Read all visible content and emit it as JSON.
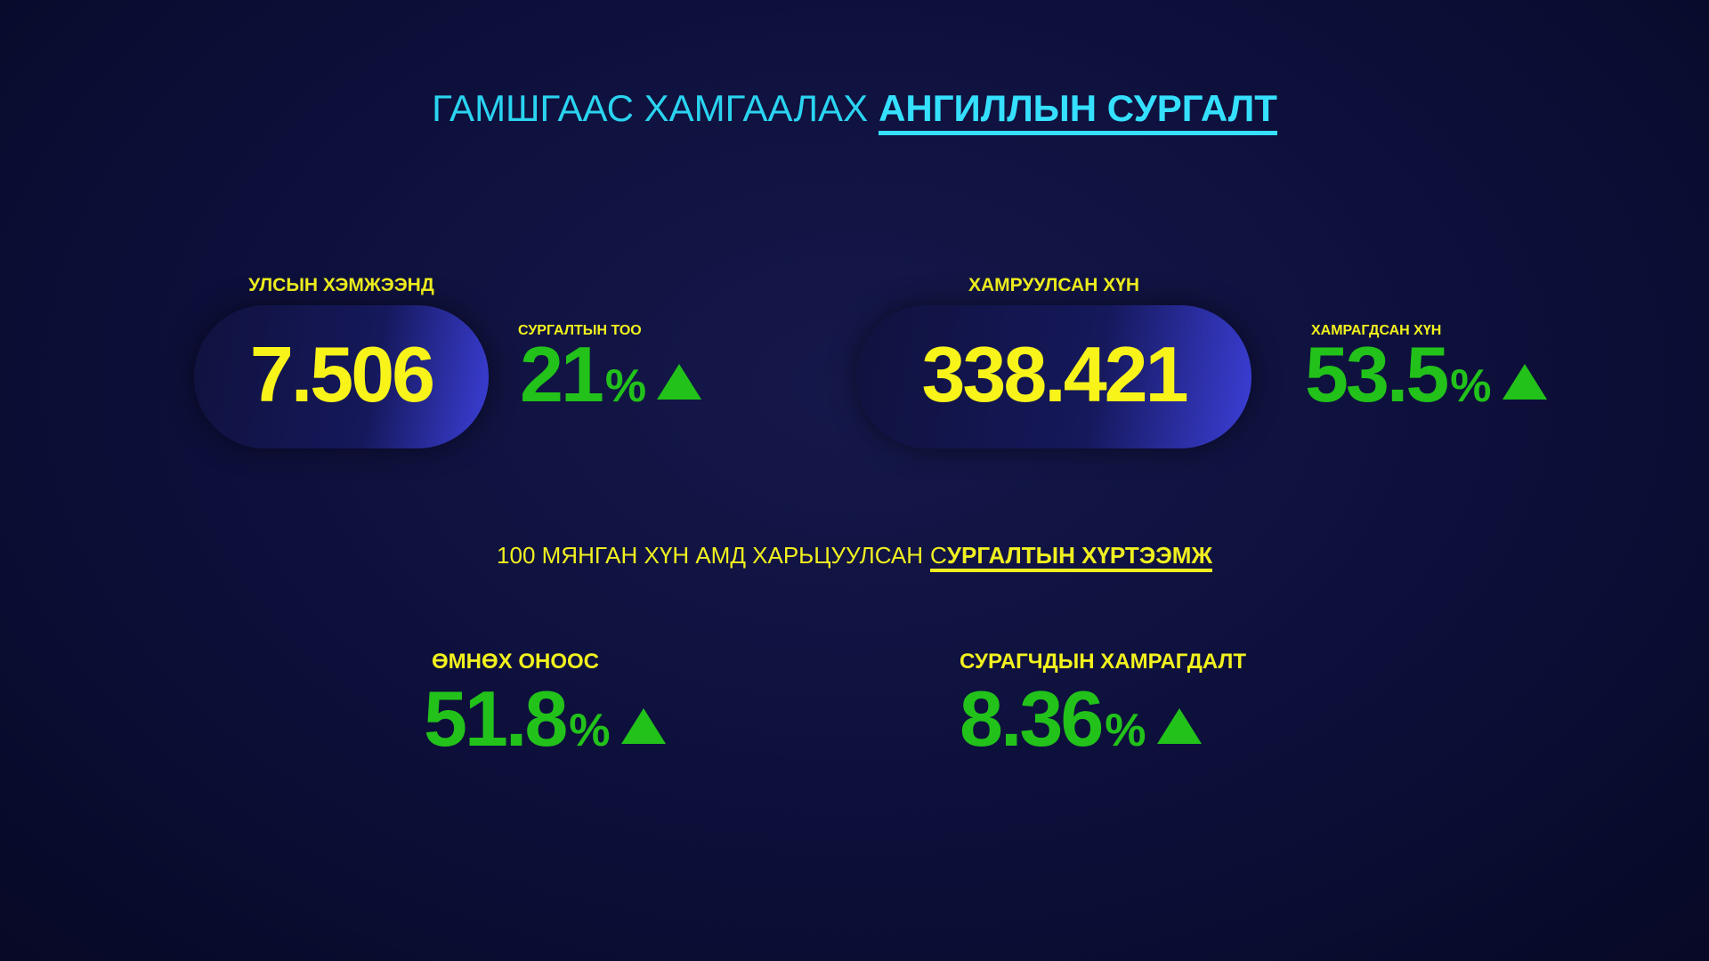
{
  "header": {
    "title_plain": "ГАМШГААС ХАМГААЛАХ",
    "title_bold": "АНГИЛЛЫН СУРГАЛТ"
  },
  "top_stats": [
    {
      "label": "УЛСЫН ХЭМЖЭЭНД",
      "value": 7.506,
      "change_label": "СУРГАЛТЫН ТОО",
      "change": 21,
      "unit": "%"
    },
    {
      "label": "ХАМРУУЛСАН ХҮН",
      "value": 338.421,
      "change_label": "ХАМРАГДСАН ХҮН",
      "change": 53.5,
      "unit": "%"
    }
  ],
  "subtitle": {
    "plain": "100 МЯНГАН ХҮН АМД ХАРЬЦУУЛСАН",
    "underlined_first": "С",
    "underlined_bold": "УРГАЛТЫН ХҮРТЭЭМЖ"
  },
  "bottom_stats": [
    {
      "label": "ӨМНӨХ ОНООС",
      "value": 51.8,
      "unit": "%"
    },
    {
      "label": "СУРАГЧДЫН ХАМРАГДАЛТ",
      "value": 8.36,
      "unit": "%"
    }
  ]
}
